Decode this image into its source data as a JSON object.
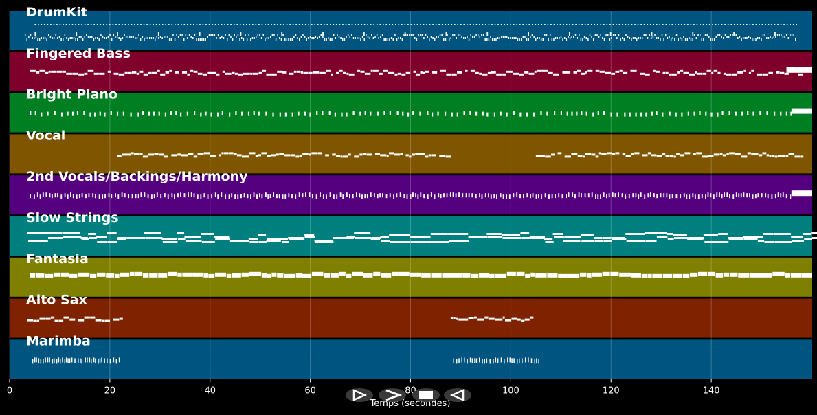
{
  "chart_data": {
    "type": "piano-roll",
    "xlabel": "Temps (secondes)",
    "xlim": [
      0,
      160
    ],
    "xticks": [
      0,
      20,
      40,
      60,
      80,
      100,
      120,
      140
    ],
    "grid": true,
    "note_color": "#ffffff",
    "tracks": [
      {
        "name": "DrumKit",
        "color": "#005580",
        "style": "drum",
        "sections": [
          [
            5,
            157
          ]
        ]
      },
      {
        "name": "Fingered Bass",
        "color": "#7f002b",
        "style": "melodic",
        "sections": [
          [
            4,
            158
          ]
        ],
        "end_block": [
          155,
          160
        ]
      },
      {
        "name": "Bright Piano",
        "color": "#007f22",
        "style": "comp",
        "sections": [
          [
            4,
            156
          ]
        ],
        "end_block": [
          156,
          160
        ]
      },
      {
        "name": "Vocal",
        "color": "#7f5500",
        "style": "melodic",
        "sections": [
          [
            21.5,
            88
          ],
          [
            105,
            158
          ]
        ]
      },
      {
        "name": "2nd Vocals/Backings/Harmony",
        "color": "#55007f",
        "style": "dense",
        "sections": [
          [
            4,
            156
          ]
        ],
        "end_block": [
          156,
          160
        ]
      },
      {
        "name": "Slow Strings",
        "color": "#007f7f",
        "style": "strings",
        "sections": [
          [
            3.5,
            160
          ]
        ]
      },
      {
        "name": "Fantasia",
        "color": "#7f7f00",
        "style": "pad",
        "sections": [
          [
            4,
            160
          ]
        ]
      },
      {
        "name": "Alto Sax",
        "color": "#7f2200",
        "style": "melodic",
        "sections": [
          [
            3.5,
            22
          ],
          [
            88,
            104
          ]
        ]
      },
      {
        "name": "Marimba",
        "color": "#005580",
        "style": "perc",
        "sections": [
          [
            4.5,
            22
          ],
          [
            88.5,
            106
          ]
        ]
      }
    ]
  },
  "controls": {
    "play_icon": "play-icon",
    "forward_icon": "fast-forward-icon",
    "stop_icon": "stop-icon",
    "rewind_icon": "rewind-icon"
  }
}
